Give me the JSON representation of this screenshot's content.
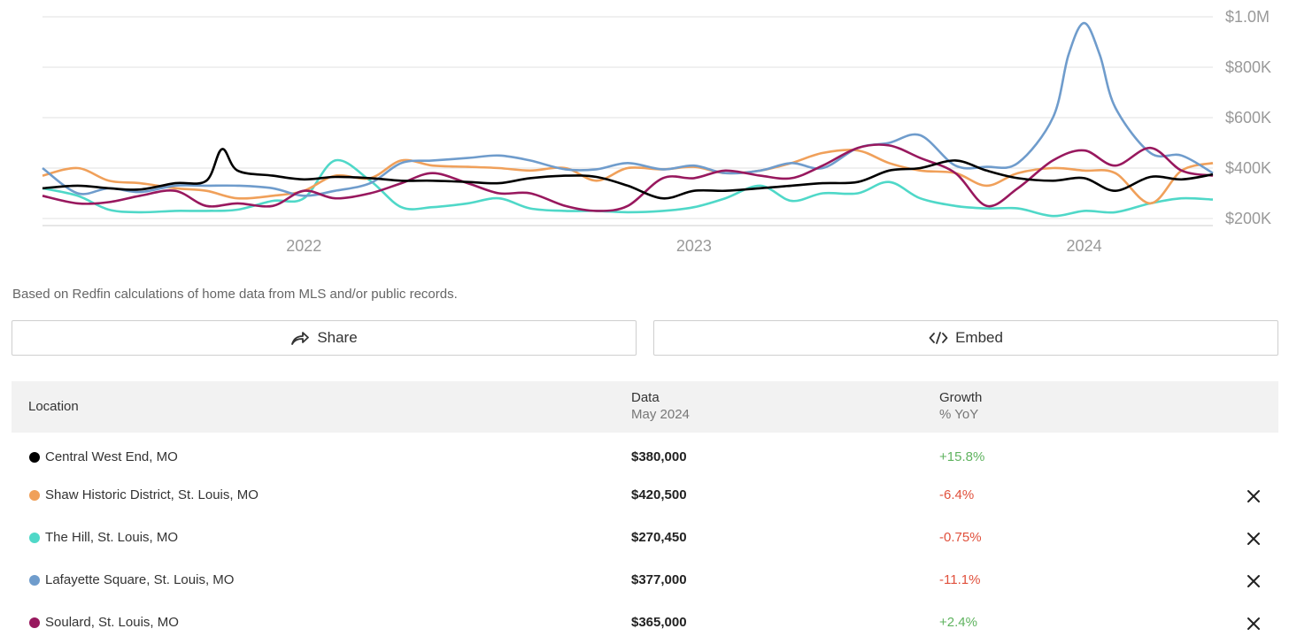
{
  "chart_data": {
    "type": "line",
    "x_ticks": [
      "2022",
      "2023",
      "2024"
    ],
    "y_ticks": [
      "$200K",
      "$400K",
      "$600K",
      "$800K",
      "$1.0M"
    ],
    "ylim": [
      200000,
      1000000
    ],
    "grid": true,
    "series": [
      {
        "name": "Central West End, MO",
        "color": "#000000",
        "x": [
          2021.33,
          2021.42,
          2021.5,
          2021.58,
          2021.67,
          2021.75,
          2021.79,
          2021.83,
          2021.92,
          2022.0,
          2022.08,
          2022.17,
          2022.25,
          2022.33,
          2022.42,
          2022.5,
          2022.58,
          2022.67,
          2022.75,
          2022.83,
          2022.92,
          2023.0,
          2023.08,
          2023.17,
          2023.25,
          2023.33,
          2023.42,
          2023.5,
          2023.58,
          2023.67,
          2023.75,
          2023.83,
          2023.92,
          2024.0,
          2024.08,
          2024.17,
          2024.25,
          2024.33
        ],
        "values": [
          320000,
          330000,
          320000,
          315000,
          340000,
          350000,
          475000,
          390000,
          370000,
          355000,
          365000,
          360000,
          350000,
          350000,
          345000,
          340000,
          360000,
          370000,
          365000,
          330000,
          280000,
          310000,
          310000,
          320000,
          330000,
          340000,
          345000,
          390000,
          400000,
          430000,
          390000,
          360000,
          350000,
          360000,
          310000,
          365000,
          355000,
          375000
        ]
      },
      {
        "name": "Shaw Historic District, St. Louis, MO",
        "color": "#f0a05a",
        "x": [
          2021.33,
          2021.42,
          2021.5,
          2021.58,
          2021.67,
          2021.75,
          2021.83,
          2021.92,
          2022.0,
          2022.08,
          2022.17,
          2022.25,
          2022.33,
          2022.42,
          2022.5,
          2022.58,
          2022.67,
          2022.75,
          2022.83,
          2022.92,
          2023.0,
          2023.08,
          2023.17,
          2023.25,
          2023.33,
          2023.42,
          2023.5,
          2023.58,
          2023.67,
          2023.75,
          2023.83,
          2023.92,
          2024.0,
          2024.08,
          2024.17,
          2024.25,
          2024.33
        ],
        "values": [
          370000,
          400000,
          350000,
          340000,
          320000,
          310000,
          280000,
          290000,
          310000,
          370000,
          360000,
          430000,
          410000,
          405000,
          400000,
          390000,
          400000,
          350000,
          400000,
          395000,
          405000,
          380000,
          390000,
          420000,
          460000,
          470000,
          420000,
          390000,
          380000,
          330000,
          380000,
          400000,
          390000,
          380000,
          260000,
          390000,
          420000
        ]
      },
      {
        "name": "The Hill, St. Louis, MO",
        "color": "#4fd8c8",
        "x": [
          2021.33,
          2021.42,
          2021.5,
          2021.58,
          2021.67,
          2021.75,
          2021.83,
          2021.92,
          2022.0,
          2022.08,
          2022.17,
          2022.25,
          2022.33,
          2022.42,
          2022.5,
          2022.58,
          2022.67,
          2022.75,
          2022.83,
          2022.92,
          2023.0,
          2023.08,
          2023.17,
          2023.25,
          2023.33,
          2023.42,
          2023.5,
          2023.58,
          2023.67,
          2023.75,
          2023.83,
          2023.92,
          2024.0,
          2024.08,
          2024.17,
          2024.25,
          2024.33
        ],
        "values": [
          320000,
          290000,
          235000,
          225000,
          230000,
          230000,
          235000,
          270000,
          280000,
          430000,
          350000,
          245000,
          245000,
          260000,
          280000,
          240000,
          230000,
          230000,
          225000,
          230000,
          245000,
          280000,
          330000,
          270000,
          300000,
          300000,
          345000,
          280000,
          250000,
          240000,
          240000,
          210000,
          230000,
          225000,
          260000,
          280000,
          275000
        ]
      },
      {
        "name": "Lafayette Square, St. Louis, MO",
        "color": "#6f9ccc",
        "x": [
          2021.33,
          2021.42,
          2021.5,
          2021.58,
          2021.67,
          2021.75,
          2021.83,
          2021.92,
          2022.0,
          2022.08,
          2022.17,
          2022.25,
          2022.33,
          2022.42,
          2022.5,
          2022.58,
          2022.67,
          2022.75,
          2022.83,
          2022.92,
          2023.0,
          2023.08,
          2023.17,
          2023.25,
          2023.33,
          2023.42,
          2023.5,
          2023.58,
          2023.67,
          2023.75,
          2023.83,
          2023.92,
          2023.96,
          2024.0,
          2024.04,
          2024.08,
          2024.17,
          2024.25,
          2024.33
        ],
        "values": [
          400000,
          300000,
          320000,
          305000,
          330000,
          330000,
          330000,
          320000,
          290000,
          310000,
          340000,
          420000,
          430000,
          440000,
          450000,
          430000,
          395000,
          395000,
          420000,
          395000,
          410000,
          380000,
          390000,
          420000,
          400000,
          480000,
          500000,
          530000,
          410000,
          405000,
          420000,
          600000,
          850000,
          975000,
          850000,
          640000,
          460000,
          450000,
          380000
        ]
      },
      {
        "name": "Soulard, St. Louis, MO",
        "color": "#98185e",
        "x": [
          2021.33,
          2021.42,
          2021.5,
          2021.58,
          2021.67,
          2021.75,
          2021.83,
          2021.92,
          2022.0,
          2022.08,
          2022.17,
          2022.25,
          2022.33,
          2022.42,
          2022.5,
          2022.58,
          2022.67,
          2022.75,
          2022.83,
          2022.92,
          2023.0,
          2023.08,
          2023.17,
          2023.25,
          2023.33,
          2023.42,
          2023.5,
          2023.58,
          2023.67,
          2023.75,
          2023.83,
          2023.92,
          2024.0,
          2024.08,
          2024.17,
          2024.25,
          2024.33
        ],
        "values": [
          290000,
          260000,
          265000,
          290000,
          310000,
          250000,
          260000,
          250000,
          310000,
          280000,
          300000,
          340000,
          380000,
          340000,
          300000,
          300000,
          250000,
          230000,
          250000,
          360000,
          360000,
          390000,
          370000,
          360000,
          410000,
          480000,
          490000,
          440000,
          380000,
          250000,
          320000,
          430000,
          470000,
          410000,
          480000,
          390000,
          370000
        ]
      }
    ]
  },
  "footnote": "Based on Redfin calculations of home data from MLS and/or public records.",
  "buttons": {
    "share": "Share",
    "embed": "Embed"
  },
  "table": {
    "headers": {
      "location": "Location",
      "data": "Data",
      "data_sub": "May 2024",
      "growth": "Growth",
      "growth_sub": "% YoY"
    },
    "rows": [
      {
        "location": "Central West End, MO",
        "value": "$380,000",
        "growth": "+15.8%",
        "growth_color": "#5fb35f",
        "color": "#000000",
        "removable": false
      },
      {
        "location": "Shaw Historic District, St. Louis, MO",
        "value": "$420,500",
        "growth": "-6.4%",
        "growth_color": "#e0503c",
        "color": "#f0a05a",
        "removable": true
      },
      {
        "location": "The Hill, St. Louis, MO",
        "value": "$270,450",
        "growth": "-0.75%",
        "growth_color": "#e0503c",
        "color": "#4fd8c8",
        "removable": true
      },
      {
        "location": "Lafayette Square, St. Louis, MO",
        "value": "$377,000",
        "growth": "-11.1%",
        "growth_color": "#e0503c",
        "color": "#6f9ccc",
        "removable": true
      },
      {
        "location": "Soulard, St. Louis, MO",
        "value": "$365,000",
        "growth": "+2.4%",
        "growth_color": "#5fb35f",
        "color": "#98185e",
        "removable": true
      }
    ]
  }
}
